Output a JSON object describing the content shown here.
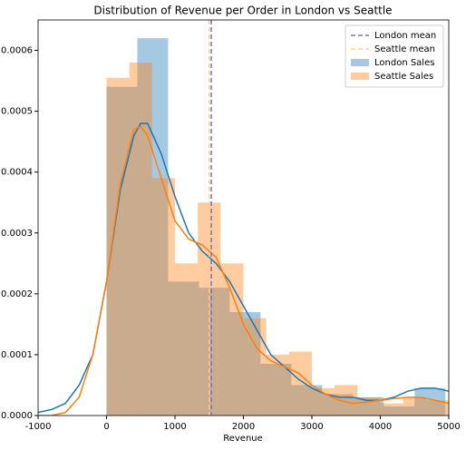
{
  "chart_data": {
    "type": "histogram",
    "title": "Distribution of Revenue per Order in London vs Seattle",
    "x_label": "Revenue",
    "xlim": [
      -1000,
      5000
    ],
    "xticks": [
      -1000,
      0,
      1000,
      2000,
      3000,
      4000,
      5000
    ],
    "ylim": [
      0,
      0.00065
    ],
    "yticks": [
      {
        "value": 0,
        "label": "0.0000"
      },
      0.0001,
      0.0002,
      0.0003,
      0.0004,
      0.0005,
      0.0006
    ],
    "legend": "upper right",
    "series": [
      {
        "name": "London Sales",
        "color": "#1f77b4",
        "bins": [
          0,
          450,
          900,
          1350,
          1800,
          2250,
          2700,
          3150,
          3600,
          4050,
          4500,
          4950
        ],
        "values": [
          0.00054,
          0.00062,
          0.00022,
          0.00021,
          0.00017,
          8.5e-05,
          5e-05,
          3.5e-05,
          3e-05,
          1.5e-05,
          4.5e-05
        ]
      },
      {
        "name": "Seattle Sales",
        "color": "#ff7f0e",
        "bins": [
          0,
          333,
          666,
          1000,
          1333,
          1666,
          2000,
          2333,
          2666,
          3000,
          3333,
          3666,
          4000,
          4333,
          4666,
          5000
        ],
        "values": [
          0.000555,
          0.00058,
          0.00039,
          0.00025,
          0.00035,
          0.00025,
          0.00016,
          0.0001,
          0.000105,
          4.5e-05,
          5e-05,
          3e-05,
          2e-05,
          3e-05,
          2.5e-05
        ]
      }
    ],
    "kde_x": [
      -1000,
      -800,
      -600,
      -400,
      -200,
      0,
      200,
      400,
      500,
      600,
      800,
      1000,
      1200,
      1400,
      1600,
      1800,
      2000,
      2200,
      2400,
      2600,
      2800,
      3000,
      3200,
      3400,
      3600,
      3800,
      4000,
      4200,
      4400,
      4600,
      4800,
      5000
    ],
    "kde": [
      {
        "color": "#1f77b4",
        "values": [
          5e-06,
          1e-05,
          2e-05,
          5e-05,
          0.0001,
          0.00022,
          0.00037,
          0.00046,
          0.00048,
          0.00048,
          0.00043,
          0.00036,
          0.0003,
          0.00027,
          0.00025,
          0.00022,
          0.00018,
          0.00014,
          0.0001,
          8e-05,
          6e-05,
          4.5e-05,
          3.5e-05,
          3e-05,
          3e-05,
          2.5e-05,
          2.5e-05,
          3e-05,
          4e-05,
          4.5e-05,
          4.5e-05,
          4e-05
        ]
      },
      {
        "color": "#ff7f0e",
        "values": [
          0,
          0,
          5e-06,
          3e-05,
          0.0001,
          0.00022,
          0.00038,
          0.00047,
          0.000475,
          0.00046,
          0.00039,
          0.00032,
          0.00029,
          0.00028,
          0.00026,
          0.00021,
          0.00015,
          0.00011,
          9e-05,
          8e-05,
          7e-05,
          5e-05,
          3.5e-05,
          2.5e-05,
          2e-05,
          2.2e-05,
          2.5e-05,
          2.8e-05,
          3e-05,
          3e-05,
          2.5e-05,
          2e-05
        ]
      }
    ],
    "mean_lines": [
      {
        "name": "London mean",
        "value": 1530,
        "color": "#7570d0"
      },
      {
        "name": "Seattle mean",
        "value": 1500,
        "color": "#ffcf90"
      }
    ]
  }
}
